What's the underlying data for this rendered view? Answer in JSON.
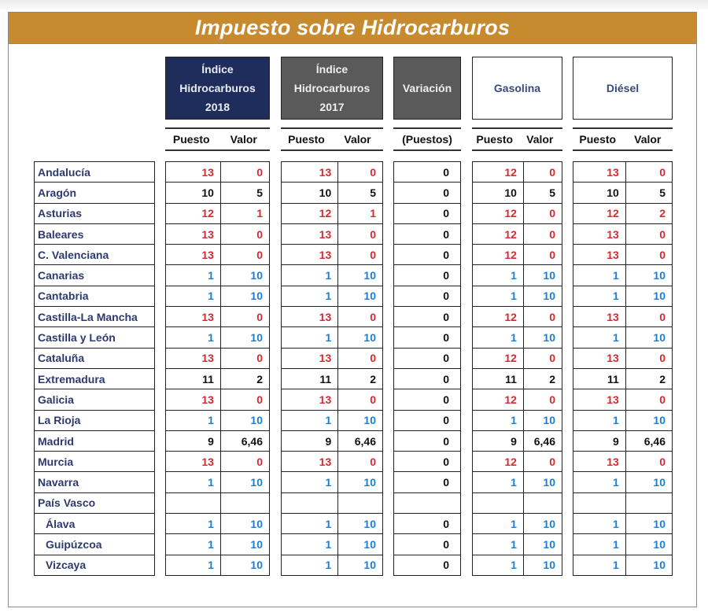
{
  "title": "Impuesto sobre Hidrocarburos",
  "colors": {
    "title_bar": "#c88a2e",
    "header_2018": "#1f2d5c",
    "header_2017": "#5a5a5a",
    "variacion": "#5a5a5a",
    "worst": "#d42a32",
    "best": "#1e7fd0",
    "neutral": "#111111",
    "region_text": "#2e3a6e"
  },
  "headers": {
    "idx2018": "Índice\nHidrocarburos\n2018",
    "idx2017": "Índice\nHidrocarburos\n2017",
    "variacion": "Variación",
    "gasolina": "Gasolina",
    "diesel": "Diésel"
  },
  "subheaders": {
    "puesto": "Puesto",
    "valor": "Valor",
    "puestos": "(Puestos)"
  },
  "rows": [
    {
      "region": "Andalucía",
      "indent": false,
      "i18p": "13",
      "i18v": "0",
      "i17p": "13",
      "i17v": "0",
      "var": "0",
      "gp": "12",
      "gv": "0",
      "dp": "13",
      "dv": "0"
    },
    {
      "region": "Aragón",
      "indent": false,
      "i18p": "10",
      "i18v": "5",
      "i17p": "10",
      "i17v": "5",
      "var": "0",
      "gp": "10",
      "gv": "5",
      "dp": "10",
      "dv": "5"
    },
    {
      "region": "Asturias",
      "indent": false,
      "i18p": "12",
      "i18v": "1",
      "i17p": "12",
      "i17v": "1",
      "var": "0",
      "gp": "12",
      "gv": "0",
      "dp": "12",
      "dv": "2"
    },
    {
      "region": "Baleares",
      "indent": false,
      "i18p": "13",
      "i18v": "0",
      "i17p": "13",
      "i17v": "0",
      "var": "0",
      "gp": "12",
      "gv": "0",
      "dp": "13",
      "dv": "0"
    },
    {
      "region": "C. Valenciana",
      "indent": false,
      "i18p": "13",
      "i18v": "0",
      "i17p": "13",
      "i17v": "0",
      "var": "0",
      "gp": "12",
      "gv": "0",
      "dp": "13",
      "dv": "0"
    },
    {
      "region": "Canarias",
      "indent": false,
      "i18p": "1",
      "i18v": "10",
      "i17p": "1",
      "i17v": "10",
      "var": "0",
      "gp": "1",
      "gv": "10",
      "dp": "1",
      "dv": "10"
    },
    {
      "region": "Cantabria",
      "indent": false,
      "i18p": "1",
      "i18v": "10",
      "i17p": "1",
      "i17v": "10",
      "var": "0",
      "gp": "1",
      "gv": "10",
      "dp": "1",
      "dv": "10"
    },
    {
      "region": "Castilla-La Mancha",
      "indent": false,
      "i18p": "13",
      "i18v": "0",
      "i17p": "13",
      "i17v": "0",
      "var": "0",
      "gp": "12",
      "gv": "0",
      "dp": "13",
      "dv": "0"
    },
    {
      "region": "Castilla y León",
      "indent": false,
      "i18p": "1",
      "i18v": "10",
      "i17p": "1",
      "i17v": "10",
      "var": "0",
      "gp": "1",
      "gv": "10",
      "dp": "1",
      "dv": "10"
    },
    {
      "region": "Cataluña",
      "indent": false,
      "i18p": "13",
      "i18v": "0",
      "i17p": "13",
      "i17v": "0",
      "var": "0",
      "gp": "12",
      "gv": "0",
      "dp": "13",
      "dv": "0"
    },
    {
      "region": "Extremadura",
      "indent": false,
      "i18p": "11",
      "i18v": "2",
      "i17p": "11",
      "i17v": "2",
      "var": "0",
      "gp": "11",
      "gv": "2",
      "dp": "11",
      "dv": "2"
    },
    {
      "region": "Galicia",
      "indent": false,
      "i18p": "13",
      "i18v": "0",
      "i17p": "13",
      "i17v": "0",
      "var": "0",
      "gp": "12",
      "gv": "0",
      "dp": "13",
      "dv": "0"
    },
    {
      "region": "La Rioja",
      "indent": false,
      "i18p": "1",
      "i18v": "10",
      "i17p": "1",
      "i17v": "10",
      "var": "0",
      "gp": "1",
      "gv": "10",
      "dp": "1",
      "dv": "10"
    },
    {
      "region": "Madrid",
      "indent": false,
      "i18p": "9",
      "i18v": "6,46",
      "i17p": "9",
      "i17v": "6,46",
      "var": "0",
      "gp": "9",
      "gv": "6,46",
      "dp": "9",
      "dv": "6,46"
    },
    {
      "region": "Murcia",
      "indent": false,
      "i18p": "13",
      "i18v": "0",
      "i17p": "13",
      "i17v": "0",
      "var": "0",
      "gp": "12",
      "gv": "0",
      "dp": "13",
      "dv": "0"
    },
    {
      "region": "Navarra",
      "indent": false,
      "i18p": "1",
      "i18v": "10",
      "i17p": "1",
      "i17v": "10",
      "var": "0",
      "gp": "1",
      "gv": "10",
      "dp": "1",
      "dv": "10"
    },
    {
      "region": "País Vasco",
      "indent": false,
      "i18p": "",
      "i18v": "",
      "i17p": "",
      "i17v": "",
      "var": "",
      "gp": "",
      "gv": "",
      "dp": "",
      "dv": ""
    },
    {
      "region": "Álava",
      "indent": true,
      "i18p": "1",
      "i18v": "10",
      "i17p": "1",
      "i17v": "10",
      "var": "0",
      "gp": "1",
      "gv": "10",
      "dp": "1",
      "dv": "10"
    },
    {
      "region": "Guipúzcoa",
      "indent": true,
      "i18p": "1",
      "i18v": "10",
      "i17p": "1",
      "i17v": "10",
      "var": "0",
      "gp": "1",
      "gv": "10",
      "dp": "1",
      "dv": "10"
    },
    {
      "region": "Vizcaya",
      "indent": true,
      "i18p": "1",
      "i18v": "10",
      "i17p": "1",
      "i17v": "10",
      "var": "0",
      "gp": "1",
      "gv": "10",
      "dp": "1",
      "dv": "10"
    }
  ]
}
